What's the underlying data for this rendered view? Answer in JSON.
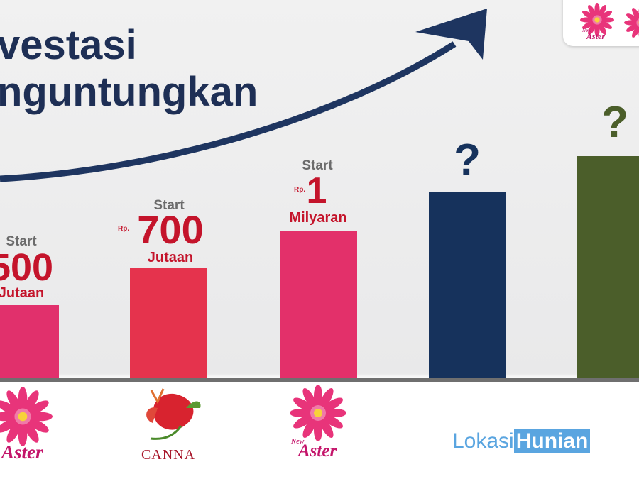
{
  "title": {
    "line1": "vestasi",
    "line2": "nguntungkan"
  },
  "bars": [
    {
      "start": "Start",
      "amount": "500",
      "unit": "Jutaan"
    },
    {
      "start": "Start",
      "currency": "Rp.",
      "amount": "700",
      "unit": "Jutaan"
    },
    {
      "start": "Start",
      "currency": "Rp.",
      "amount": "1",
      "unit": "Milyaran"
    },
    {
      "label": "?"
    },
    {
      "label": "?"
    }
  ],
  "logos": [
    {
      "name": "Aster"
    },
    {
      "name": "CANNA"
    },
    {
      "small": "New",
      "name": "Aster"
    }
  ],
  "badge": {
    "small": "New",
    "name": "Aster"
  },
  "watermark": {
    "part1": "Lokasi",
    "part2": "Hunian"
  }
}
